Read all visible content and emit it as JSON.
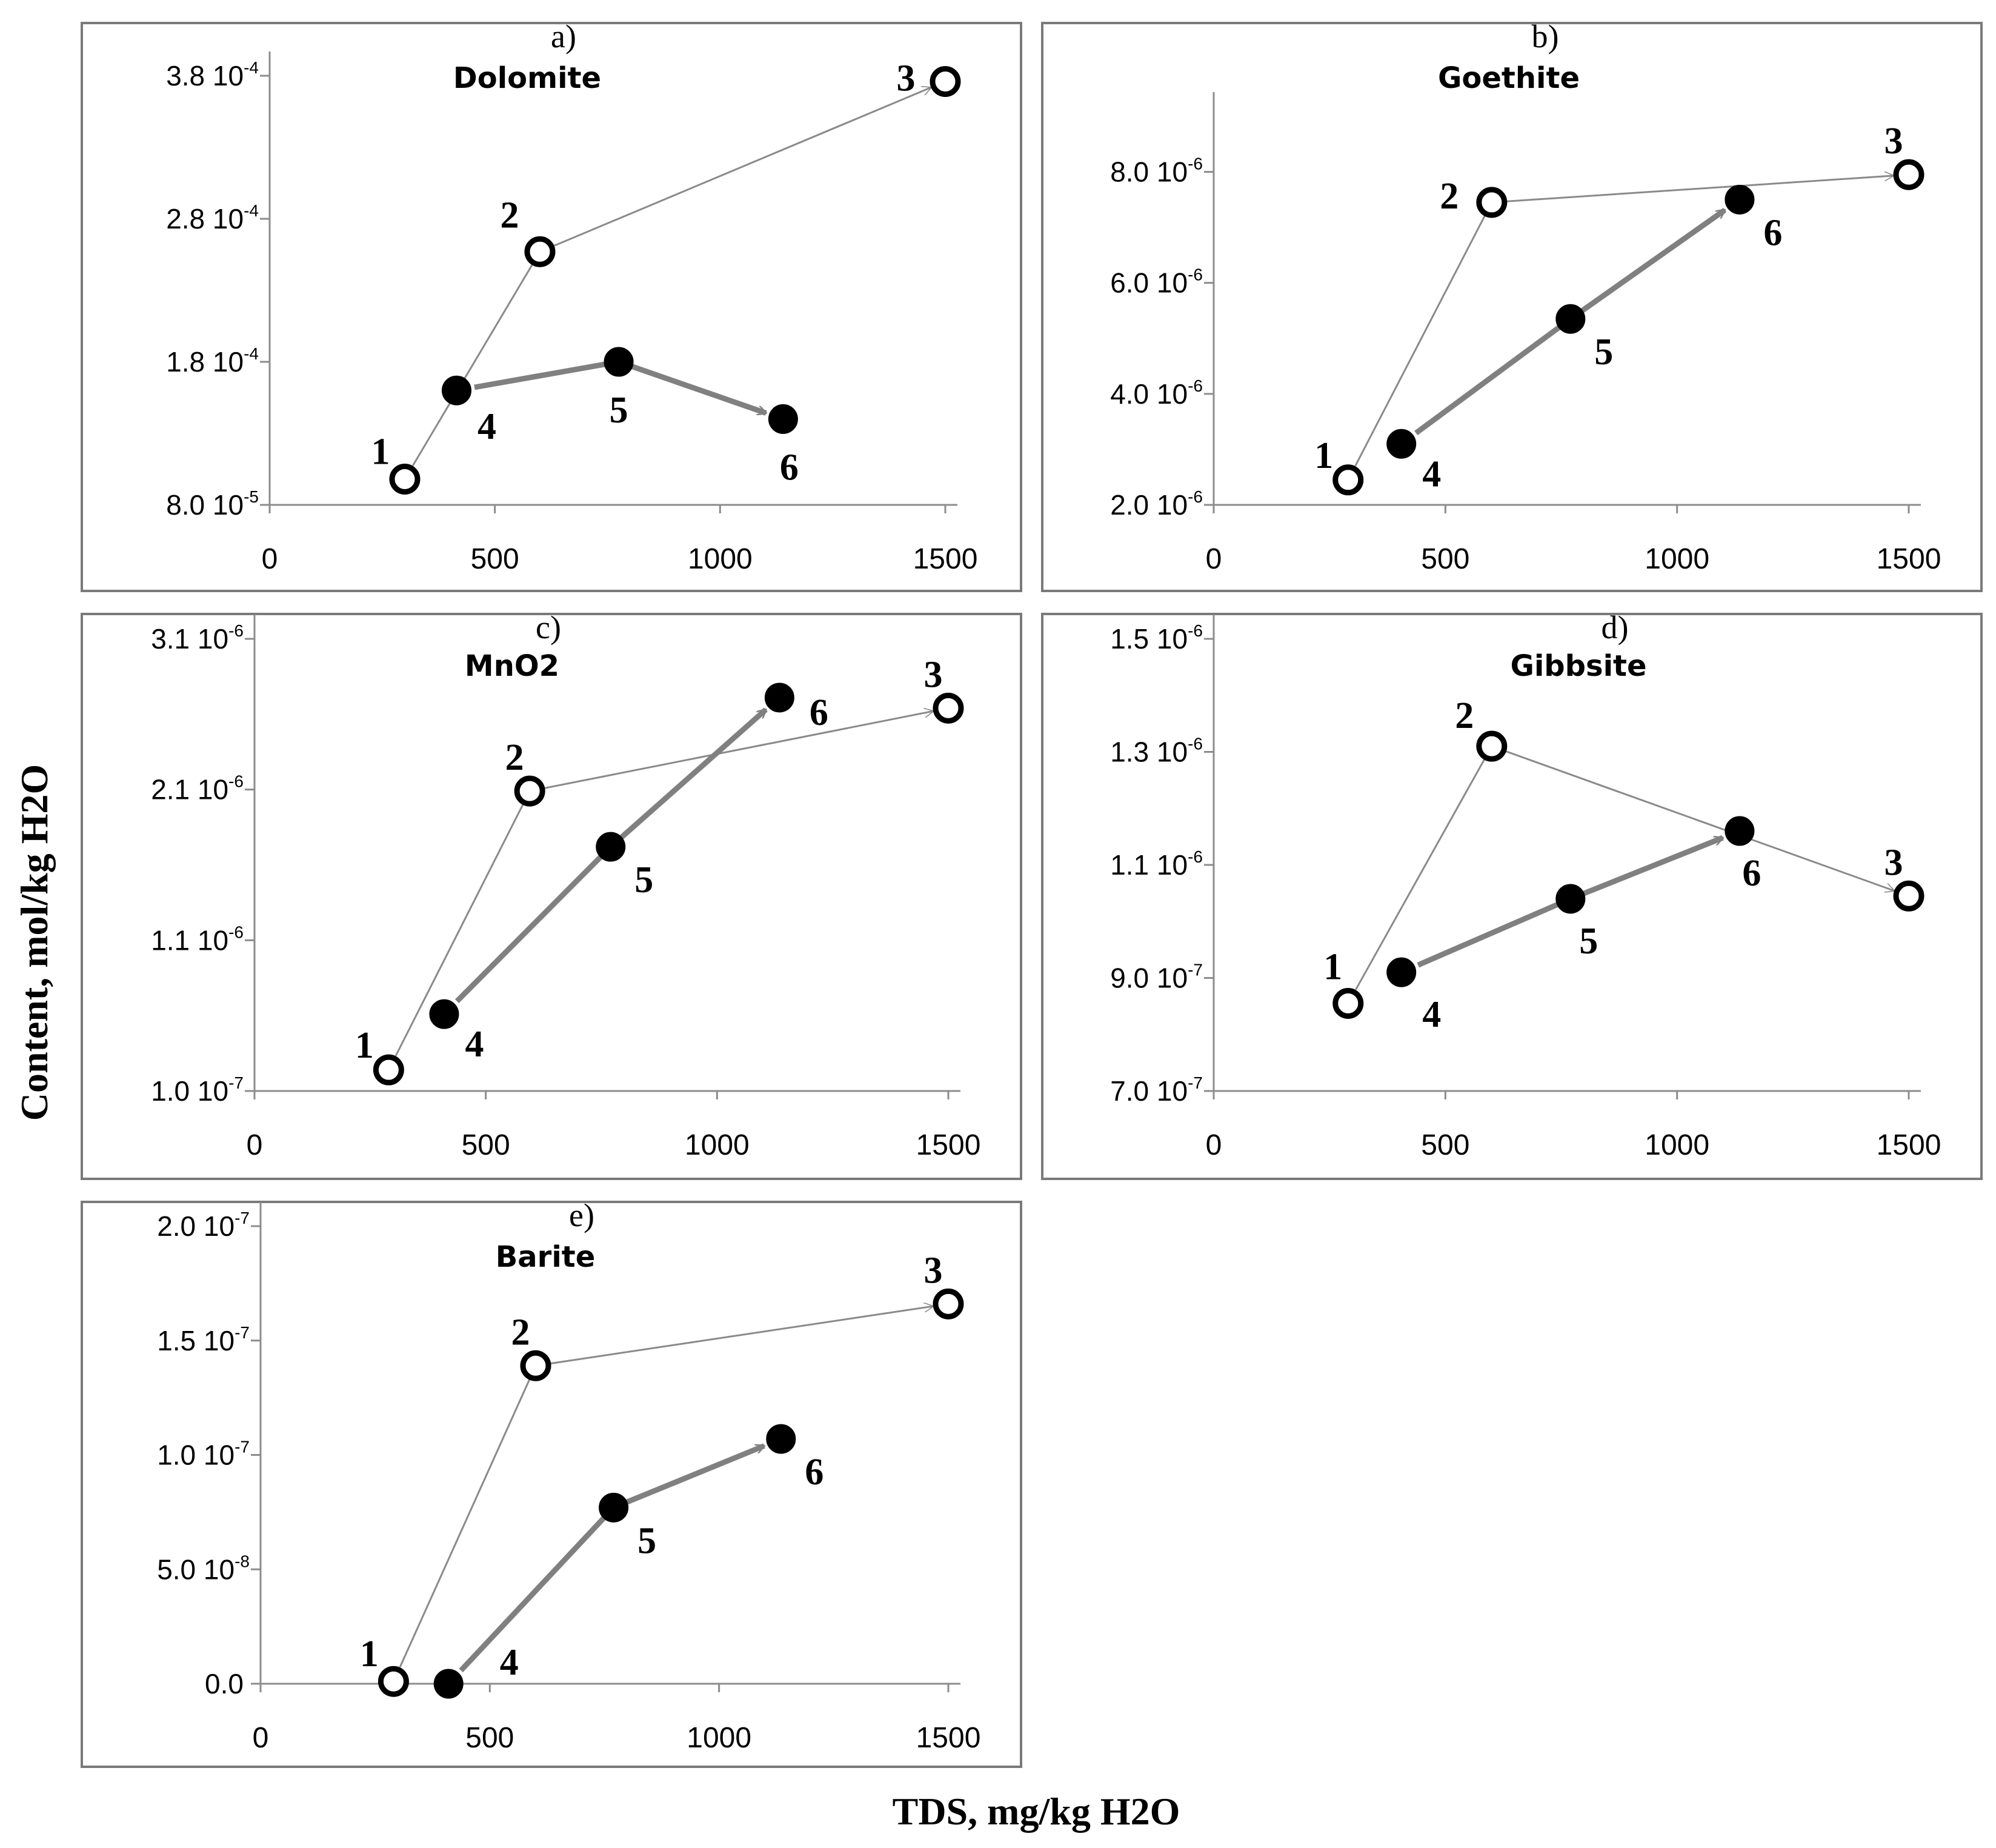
{
  "figure": {
    "ylabel": "Content, mol/kg H2O",
    "xlabel": "TDS, mg/kg H2O"
  },
  "chart_data": [
    {
      "type": "scatter",
      "panel": "a)",
      "title": "Dolomite",
      "xlabel": "TDS, mg/kg H2O",
      "ylabel": "Content, mol/kg H2O",
      "xlim": [
        0,
        1500
      ],
      "xticks": [
        0,
        500,
        1000,
        1500
      ],
      "ylim": [
        8e-05,
        0.00038
      ],
      "yticks": [
        {
          "v": 8e-05,
          "mant": "8.0",
          "exp": "-5"
        },
        {
          "v": 0.00018,
          "mant": "1.8",
          "exp": "-4"
        },
        {
          "v": 0.00028,
          "mant": "2.8",
          "exp": "-4"
        },
        {
          "v": 0.00038,
          "mant": "3.8",
          "exp": "-4"
        }
      ],
      "series": [
        {
          "name": "open",
          "style": "thin",
          "points": [
            {
              "label": "1",
              "x": 300,
              "y": 9.8e-05
            },
            {
              "label": "2",
              "x": 600,
              "y": 0.000257
            },
            {
              "label": "3",
              "x": 1500,
              "y": 0.000376
            }
          ]
        },
        {
          "name": "filled",
          "style": "thick",
          "points": [
            {
              "label": "4",
              "x": 415,
              "y": 0.00016
            },
            {
              "label": "5",
              "x": 775,
              "y": 0.00018
            },
            {
              "label": "6",
              "x": 1140,
              "y": 0.00014
            }
          ]
        }
      ]
    },
    {
      "type": "scatter",
      "panel": "b)",
      "title": "Goethite",
      "xlabel": "TDS, mg/kg H2O",
      "ylabel": "Content, mol/kg H2O",
      "xlim": [
        0,
        1500
      ],
      "xticks": [
        0,
        500,
        1000,
        1500
      ],
      "ylim": [
        2e-06,
        9e-06
      ],
      "yticks": [
        {
          "v": 2e-06,
          "mant": "2.0",
          "exp": "-6"
        },
        {
          "v": 4e-06,
          "mant": "4.0",
          "exp": "-6"
        },
        {
          "v": 6e-06,
          "mant": "6.0",
          "exp": "-6"
        },
        {
          "v": 8e-06,
          "mant": "8.0",
          "exp": "-6"
        }
      ],
      "series": [
        {
          "name": "open",
          "style": "thin",
          "points": [
            {
              "label": "1",
              "x": 290,
              "y": 2.45e-06
            },
            {
              "label": "2",
              "x": 600,
              "y": 7.45e-06
            },
            {
              "label": "3",
              "x": 1500,
              "y": 7.95e-06
            }
          ]
        },
        {
          "name": "filled",
          "style": "thick",
          "points": [
            {
              "label": "4",
              "x": 405,
              "y": 3.1e-06
            },
            {
              "label": "5",
              "x": 770,
              "y": 5.35e-06
            },
            {
              "label": "6",
              "x": 1135,
              "y": 7.5e-06
            }
          ]
        }
      ]
    },
    {
      "type": "scatter",
      "panel": "c)",
      "title": "MnO2",
      "xlabel": "TDS, mg/kg H2O",
      "ylabel": "Content, mol/kg H2O",
      "xlim": [
        0,
        1500
      ],
      "xticks": [
        0,
        500,
        1000,
        1500
      ],
      "ylim": [
        1e-07,
        3.1e-06
      ],
      "yticks": [
        {
          "v": 1e-07,
          "mant": "1.0",
          "exp": "-7"
        },
        {
          "v": 1.1e-06,
          "mant": "1.1",
          "exp": "-6"
        },
        {
          "v": 2.1e-06,
          "mant": "2.1",
          "exp": "-6"
        },
        {
          "v": 3.1e-06,
          "mant": "3.1",
          "exp": "-6"
        }
      ],
      "series": [
        {
          "name": "open",
          "style": "thin",
          "points": [
            {
              "label": "1",
              "x": 290,
              "y": 2.4e-07
            },
            {
              "label": "2",
              "x": 595,
              "y": 2.09e-06
            },
            {
              "label": "3",
              "x": 1500,
              "y": 2.64e-06
            }
          ]
        },
        {
          "name": "filled",
          "style": "thick",
          "points": [
            {
              "label": "4",
              "x": 410,
              "y": 6.1e-07
            },
            {
              "label": "5",
              "x": 770,
              "y": 1.72e-06
            },
            {
              "label": "6",
              "x": 1135,
              "y": 2.71e-06
            }
          ]
        }
      ]
    },
    {
      "type": "scatter",
      "panel": "d)",
      "title": "Gibbsite",
      "xlabel": "TDS, mg/kg H2O",
      "ylabel": "Content, mol/kg H2O",
      "xlim": [
        0,
        1500
      ],
      "xticks": [
        0,
        500,
        1000,
        1500
      ],
      "ylim": [
        7e-07,
        1.5e-06
      ],
      "yticks": [
        {
          "v": 7e-07,
          "mant": "7.0",
          "exp": "-7"
        },
        {
          "v": 9e-07,
          "mant": "9.0",
          "exp": "-7"
        },
        {
          "v": 1.1e-06,
          "mant": "1.1",
          "exp": "-6"
        },
        {
          "v": 1.3e-06,
          "mant": "1.3",
          "exp": "-6"
        },
        {
          "v": 1.5e-06,
          "mant": "1.5",
          "exp": "-6"
        }
      ],
      "series": [
        {
          "name": "open",
          "style": "thin",
          "points": [
            {
              "label": "1",
              "x": 290,
              "y": 8.55e-07
            },
            {
              "label": "2",
              "x": 600,
              "y": 1.31e-06
            },
            {
              "label": "3",
              "x": 1500,
              "y": 1.045e-06
            }
          ]
        },
        {
          "name": "filled",
          "style": "thick",
          "points": [
            {
              "label": "4",
              "x": 405,
              "y": 9.1e-07
            },
            {
              "label": "5",
              "x": 770,
              "y": 1.04e-06
            },
            {
              "label": "6",
              "x": 1135,
              "y": 1.16e-06
            }
          ]
        }
      ]
    },
    {
      "type": "scatter",
      "panel": "e)",
      "title": "Barite",
      "xlabel": "TDS, mg/kg H2O",
      "ylabel": "Content, mol/kg H2O",
      "xlim": [
        0,
        1500
      ],
      "xticks": [
        0,
        500,
        1000,
        1500
      ],
      "ylim": [
        0,
        2e-07
      ],
      "yticks": [
        {
          "v": 0,
          "mant": "0.0",
          "exp": ""
        },
        {
          "v": 5e-08,
          "mant": "5.0",
          "exp": "-8"
        },
        {
          "v": 1e-07,
          "mant": "1.0",
          "exp": "-7"
        },
        {
          "v": 1.5e-07,
          "mant": "1.5",
          "exp": "-7"
        },
        {
          "v": 2e-07,
          "mant": "2.0",
          "exp": "-7"
        }
      ],
      "series": [
        {
          "name": "open",
          "style": "thin",
          "points": [
            {
              "label": "1",
              "x": 290,
              "y": 1e-09
            },
            {
              "label": "2",
              "x": 600,
              "y": 1.39e-07
            },
            {
              "label": "3",
              "x": 1500,
              "y": 1.66e-07
            }
          ]
        },
        {
          "name": "filled",
          "style": "thick",
          "points": [
            {
              "label": "4",
              "x": 410,
              "y": 0
            },
            {
              "label": "5",
              "x": 770,
              "y": 7.7e-08
            },
            {
              "label": "6",
              "x": 1135,
              "y": 1.07e-07
            }
          ]
        }
      ]
    }
  ]
}
